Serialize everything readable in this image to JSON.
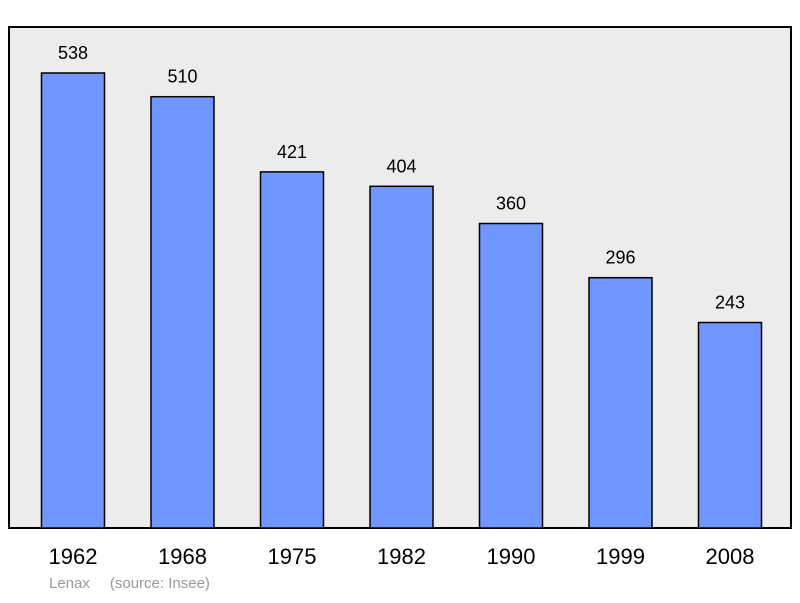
{
  "chart_data": {
    "type": "bar",
    "title": "",
    "xlabel": "",
    "ylabel": "",
    "categories": [
      "1962",
      "1968",
      "1975",
      "1982",
      "1990",
      "1999",
      "2008"
    ],
    "values": [
      538,
      510,
      421,
      404,
      360,
      296,
      243
    ],
    "ylim": [
      0,
      600
    ],
    "grid": false,
    "legend": "none",
    "data_labels": true
  },
  "footer": {
    "commune": "Lenax",
    "source": "(source: Insee)"
  },
  "colors": {
    "plot_background": "#ececec",
    "bar_fill": "#7096ff",
    "bar_stroke": "#000000",
    "frame": "#000000",
    "footer_text": "#9a9a9a"
  }
}
